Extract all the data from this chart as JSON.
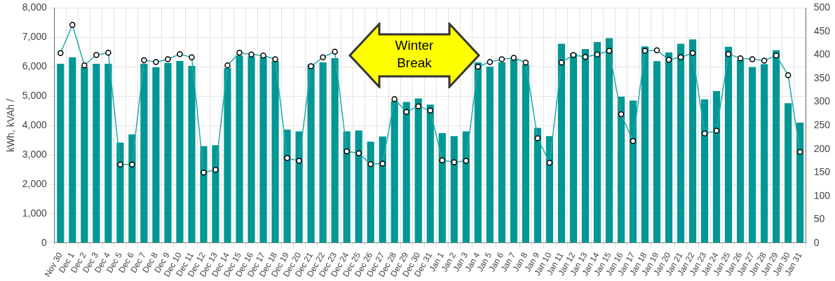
{
  "chart_data": {
    "type": "bar",
    "ylabel": "kWh, kVAh /",
    "categories": [
      "Nov 30",
      "Dec 1",
      "Dec 2",
      "Dec 3",
      "Dec 4",
      "Dec 5",
      "Dec 6",
      "Dec 7",
      "Dec 8",
      "Dec 9",
      "Dec 10",
      "Dec 11",
      "Dec 12",
      "Dec 13",
      "Dec 14",
      "Dec 15",
      "Dec 16",
      "Dec 17",
      "Dec 18",
      "Dec 19",
      "Dec 20",
      "Dec 21",
      "Dec 22",
      "Dec 23",
      "Dec 24",
      "Dec 25",
      "Dec 26",
      "Dec 27",
      "Dec 28",
      "Dec 29",
      "Dec 30",
      "Dec 31",
      "Jan 1",
      "Jan 2",
      "Jan 3",
      "Jan 4",
      "Jan 5",
      "Jan 6",
      "Jan 7",
      "Jan 8",
      "Jan 9",
      "Jan 10",
      "Jan 11",
      "Jan 12",
      "Jan 13",
      "Jan 14",
      "Jan 15",
      "Jan 16",
      "Jan 17",
      "Jan 18",
      "Jan 19",
      "Jan 20",
      "Jan 21",
      "Jan 22",
      "Jan 23",
      "Jan 24",
      "Jan 25",
      "Jan 26",
      "Jan 27",
      "Jan 28",
      "Jan 29",
      "Jan 30",
      "Jan 31"
    ],
    "series": [
      {
        "color": "#009795",
        "values": [
          6100,
          6320,
          5980,
          6100,
          6100,
          3420,
          3700,
          6100,
          5980,
          6130,
          6200,
          6030,
          3300,
          3330,
          5950,
          6380,
          6350,
          6330,
          6200,
          3860,
          3800,
          6080,
          6150,
          6290,
          3800,
          3830,
          3450,
          3630,
          4830,
          4800,
          4920,
          4710,
          3740,
          3640,
          3800,
          6150,
          6000,
          6150,
          6250,
          6080,
          3920,
          3640,
          6780,
          6460,
          6600,
          6840,
          6970,
          4980,
          4850,
          6690,
          6190,
          6490,
          6780,
          6930,
          4890,
          5170,
          6680,
          6240,
          5990,
          6090,
          6560,
          4760,
          4100
        ]
      },
      {
        "type": "line",
        "axis": "y2",
        "color": "#26a9a9",
        "values": [
          404,
          464,
          378,
          400,
          405,
          167,
          167,
          389,
          385,
          391,
          402,
          395,
          150,
          156,
          378,
          405,
          401,
          399,
          391,
          181,
          175,
          376,
          395,
          407,
          195,
          191,
          168,
          169,
          306,
          279,
          291,
          282,
          176,
          172,
          175,
          375,
          385,
          391,
          394,
          384,
          223,
          171,
          384,
          400,
          396,
          401,
          409,
          274,
          217,
          409,
          410,
          390,
          395,
          404,
          233,
          239,
          402,
          393,
          391,
          388,
          399,
          357,
          194
        ]
      }
    ],
    "ylim": [
      0,
      8000
    ],
    "yticks": [
      0,
      {
        "value": 1000,
        "label": "1,000"
      },
      {
        "value": 2000,
        "label": "2,000"
      },
      {
        "value": 3000,
        "label": "3,000"
      },
      {
        "value": 4000,
        "label": "4,000"
      },
      {
        "value": 5000,
        "label": "5,000"
      },
      {
        "value": 6000,
        "label": "6,000"
      },
      {
        "value": 7000,
        "label": "7,000"
      },
      {
        "value": 8000,
        "label": "8,000"
      }
    ],
    "y2lim": [
      0,
      500
    ],
    "y2ticks": [
      0,
      50,
      100,
      150,
      200,
      250,
      300,
      350,
      400,
      450,
      500
    ],
    "grid": true,
    "legend": false,
    "marker": "circle",
    "line_style": "solid",
    "annotations": [
      "Winter Break"
    ]
  }
}
